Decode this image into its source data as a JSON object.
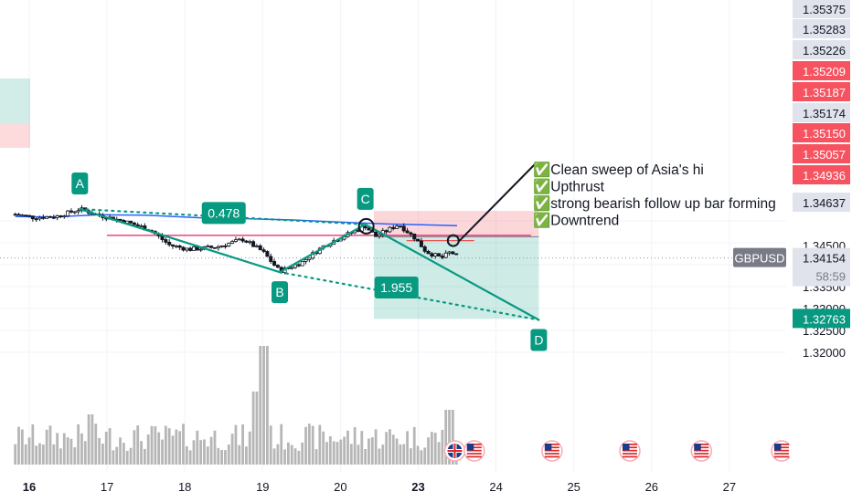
{
  "chart_data": {
    "type": "candlestick",
    "symbol": "GBPUSD",
    "countdown": "58:59",
    "y_range": [
      1.318,
      1.3548
    ],
    "x_range": [
      15.82,
      28.0
    ],
    "date_ticks": [
      {
        "x": 16,
        "label": "16",
        "bold": true
      },
      {
        "x": 17,
        "label": "17"
      },
      {
        "x": 18,
        "label": "18"
      },
      {
        "x": 19,
        "label": "19"
      },
      {
        "x": 20,
        "label": "20"
      },
      {
        "x": 21,
        "label": "23",
        "bold": true
      },
      {
        "x": 22,
        "label": "24"
      },
      {
        "x": 23,
        "label": "25"
      },
      {
        "x": 24,
        "label": "26"
      },
      {
        "x": 25,
        "label": "27"
      }
    ],
    "price_ticks": [
      {
        "value": 1.335,
        "label": "1.33500"
      },
      {
        "value": 1.33,
        "label": "1.33000"
      },
      {
        "value": 1.325,
        "label": "1.32500"
      },
      {
        "value": 1.32,
        "label": "1.32000"
      }
    ],
    "price_tags": [
      {
        "value": 1.35375,
        "label": "1.35375",
        "bg": "#e0e3eb",
        "fg": "#131722",
        "y": 10
      },
      {
        "value": 1.35283,
        "label": "1.35283",
        "bg": "#e0e3eb",
        "fg": "#131722",
        "y": 32
      },
      {
        "value": 1.35226,
        "label": "1.35226",
        "bg": "#e0e3eb",
        "fg": "#131722",
        "y": 55
      },
      {
        "value": 1.35209,
        "label": "1.35209",
        "bg": "#f7525f",
        "fg": "#ffffff",
        "y": 78
      },
      {
        "value": 1.35187,
        "label": "1.35187",
        "bg": "#f7525f",
        "fg": "#ffffff",
        "y": 101
      },
      {
        "value": 1.35174,
        "label": "1.35174",
        "bg": "#e0e3eb",
        "fg": "#131722",
        "y": 124
      },
      {
        "value": 1.3515,
        "label": "1.35150",
        "bg": "#f7525f",
        "fg": "#ffffff",
        "y": 146
      },
      {
        "value": 1.35057,
        "label": "1.35057",
        "bg": "#f7525f",
        "fg": "#ffffff",
        "y": 169
      },
      {
        "value": 1.34936,
        "label": "1.34936",
        "bg": "#f7525f",
        "fg": "#ffffff",
        "y": 192
      },
      {
        "value": 1.34637,
        "label": "1.34637",
        "bg": "#e0e3eb",
        "fg": "#131722",
        "y": 222
      }
    ],
    "axis_label_1_34500": "1.34500",
    "current_price": {
      "value": 1.34154,
      "label": "1.34154",
      "bg": "#e0e3eb",
      "fg": "#131722"
    },
    "target_tag": {
      "value": 1.32763,
      "label": "1.32763",
      "bg": "#089981",
      "fg": "#ffffff"
    },
    "harmonic_points": [
      {
        "name": "A",
        "x": 16.65,
        "price": 1.3527
      },
      {
        "name": "B",
        "x": 19.22,
        "price": 1.3383
      },
      {
        "name": "C",
        "x": 20.32,
        "price": 1.3492
      },
      {
        "name": "D",
        "x": 22.55,
        "price": 1.3274
      }
    ],
    "ratios": [
      {
        "label": "0.478",
        "x": 18.5,
        "price": 1.3518
      },
      {
        "label": "1.955",
        "x": 20.72,
        "price": 1.3348
      }
    ],
    "moving_average": {
      "color": "#2962ff",
      "points": [
        [
          15.82,
          1.351
        ],
        [
          16.3,
          1.3509
        ],
        [
          16.9,
          1.3514
        ],
        [
          17.5,
          1.3513
        ],
        [
          18.2,
          1.3507
        ],
        [
          18.8,
          1.3505
        ],
        [
          19.4,
          1.3502
        ],
        [
          20.0,
          1.3497
        ],
        [
          20.6,
          1.3493
        ],
        [
          21.05,
          1.3491
        ],
        [
          21.5,
          1.3489
        ]
      ]
    },
    "position": {
      "entry": 1.34637,
      "stop": 1.34936,
      "target": 1.32763,
      "x_start": 20.43,
      "x_end": 22.55
    },
    "levels": [
      {
        "price": 1.3467,
        "x_start": 17.0,
        "x_end": 22.45,
        "color": "#e91e63"
      },
      {
        "price": 1.3455,
        "x_start": 20.85,
        "x_end": 21.72,
        "color": "#ef5350"
      }
    ],
    "notes": [
      "✅Clean sweep of Asia's hi",
      "✅Upthrust",
      "✅strong bearish follow up bar forming",
      "✅Downtrend"
    ],
    "colors": {
      "up": "#131722",
      "down": "#131722",
      "pattern": "#089981",
      "volume": "#9e9e9e"
    }
  }
}
